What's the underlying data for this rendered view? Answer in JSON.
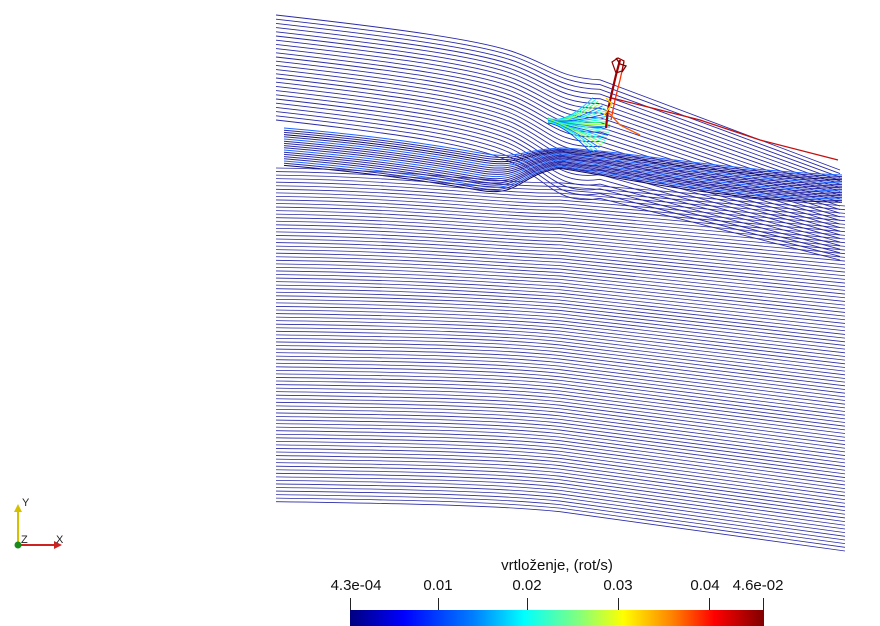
{
  "colorbar": {
    "title": "vrtloženje, (rot/s)",
    "ticks": [
      "4.3e-04",
      "0.01",
      "0.02",
      "0.03",
      "0.04",
      "4.6e-02"
    ],
    "tick_values": [
      0.00043,
      0.01,
      0.02,
      0.03,
      0.04,
      0.046
    ],
    "range": [
      0.00043,
      0.046
    ],
    "colormap": [
      "#000080",
      "#0000ff",
      "#0080ff",
      "#00ffff",
      "#80ff80",
      "#ffff00",
      "#ff8000",
      "#ff0000",
      "#800000"
    ]
  },
  "axes": {
    "y_label": "Y",
    "z_label": "Z",
    "x_label": "X"
  },
  "colors": {
    "streamline": "#2a2aa8",
    "background": "#ffffff"
  }
}
